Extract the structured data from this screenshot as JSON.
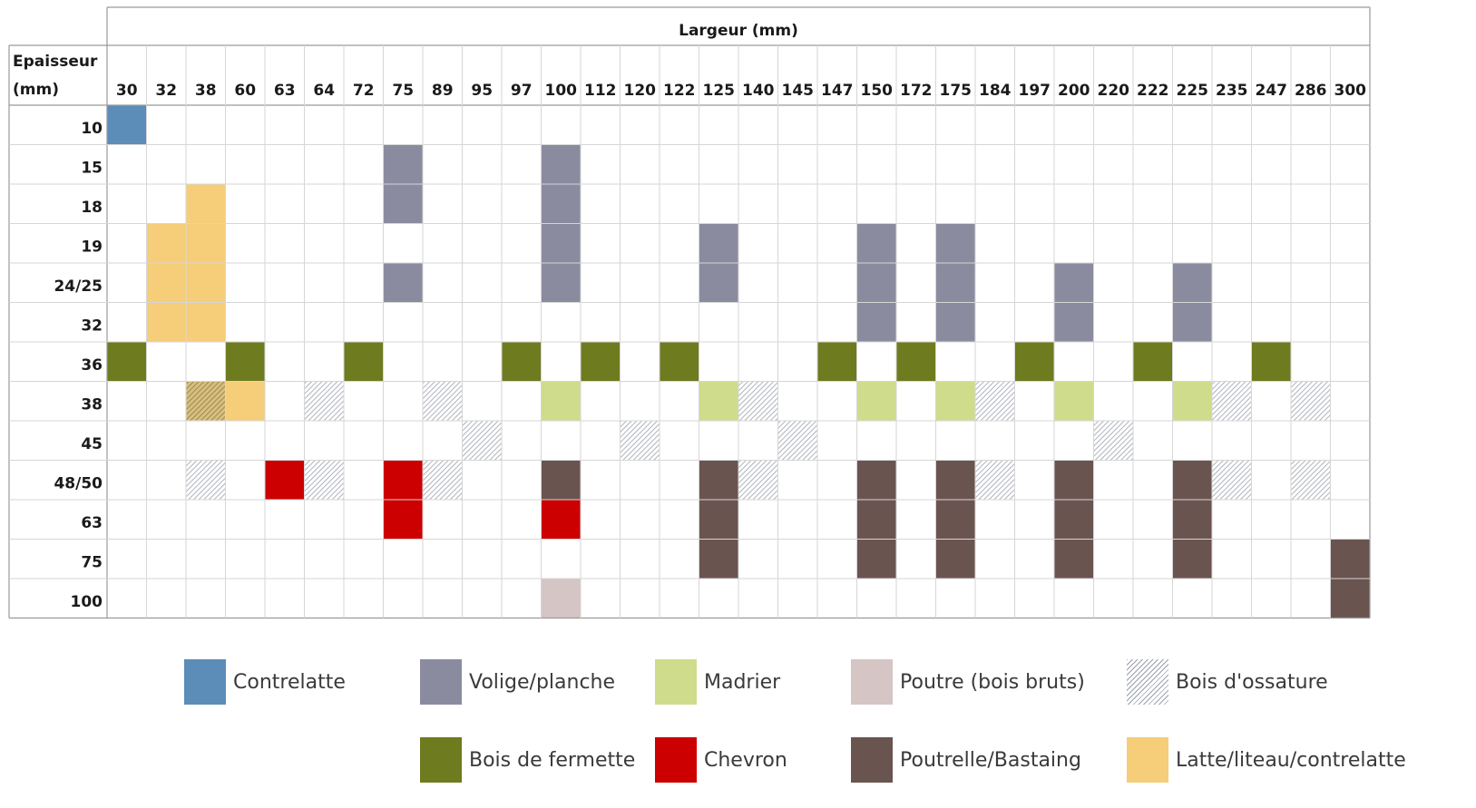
{
  "chart_data": {
    "type": "table",
    "column_header": "Largeur (mm)",
    "row_header_line1": "Epaisseur",
    "row_header_line2": "(mm)",
    "columns": [
      "30",
      "32",
      "38",
      "60",
      "63",
      "64",
      "72",
      "75",
      "89",
      "95",
      "97",
      "100",
      "112",
      "120",
      "122",
      "125",
      "140",
      "145",
      "147",
      "150",
      "172",
      "175",
      "184",
      "197",
      "200",
      "220",
      "222",
      "225",
      "235",
      "247",
      "286",
      "300"
    ],
    "rows": [
      "10",
      "15",
      "18",
      "19",
      "24/25",
      "32",
      "36",
      "38",
      "45",
      "48/50",
      "63",
      "75",
      "100"
    ],
    "categories": {
      "C": {
        "label": "Contrelatte",
        "color": "#5b8db8"
      },
      "V": {
        "label": "Volige/planche",
        "color": "#8b8ba0"
      },
      "M": {
        "label": "Madrier",
        "color": "#cfdc8c"
      },
      "P": {
        "label": "Poutre (bois bruts)",
        "color": "#d5c5c5"
      },
      "O": {
        "label": "Bois d'ossature",
        "color": "hatch"
      },
      "F": {
        "label": "Bois de fermette",
        "color": "#6e7b1f"
      },
      "CH": {
        "label": "Chevron",
        "color": "#cc0000"
      },
      "PB": {
        "label": "Poutrelle/Bastaing",
        "color": "#6a5450"
      },
      "L": {
        "label": "Latte/liteau/contrelatte",
        "color": "#f6cd79"
      }
    },
    "legend_order": [
      "C",
      "V",
      "M",
      "P",
      "O",
      "F",
      "CH",
      "PB",
      "L"
    ],
    "cells": [
      {
        "row": "10",
        "col": "30",
        "cat": "C"
      },
      {
        "row": "15",
        "col": "75",
        "cat": "V"
      },
      {
        "row": "15",
        "col": "100",
        "cat": "V"
      },
      {
        "row": "18",
        "col": "38",
        "cat": "L"
      },
      {
        "row": "18",
        "col": "75",
        "cat": "V"
      },
      {
        "row": "18",
        "col": "100",
        "cat": "V"
      },
      {
        "row": "19",
        "col": "32",
        "cat": "L"
      },
      {
        "row": "19",
        "col": "38",
        "cat": "L"
      },
      {
        "row": "19",
        "col": "100",
        "cat": "V"
      },
      {
        "row": "19",
        "col": "125",
        "cat": "V"
      },
      {
        "row": "19",
        "col": "150",
        "cat": "V"
      },
      {
        "row": "19",
        "col": "175",
        "cat": "V"
      },
      {
        "row": "24/25",
        "col": "32",
        "cat": "L"
      },
      {
        "row": "24/25",
        "col": "38",
        "cat": "L"
      },
      {
        "row": "24/25",
        "col": "75",
        "cat": "V"
      },
      {
        "row": "24/25",
        "col": "100",
        "cat": "V"
      },
      {
        "row": "24/25",
        "col": "125",
        "cat": "V"
      },
      {
        "row": "24/25",
        "col": "150",
        "cat": "V"
      },
      {
        "row": "24/25",
        "col": "175",
        "cat": "V"
      },
      {
        "row": "24/25",
        "col": "200",
        "cat": "V"
      },
      {
        "row": "24/25",
        "col": "225",
        "cat": "V"
      },
      {
        "row": "32",
        "col": "32",
        "cat": "L"
      },
      {
        "row": "32",
        "col": "38",
        "cat": "L"
      },
      {
        "row": "32",
        "col": "150",
        "cat": "V"
      },
      {
        "row": "32",
        "col": "175",
        "cat": "V"
      },
      {
        "row": "32",
        "col": "200",
        "cat": "V"
      },
      {
        "row": "32",
        "col": "225",
        "cat": "V"
      },
      {
        "row": "36",
        "col": "30",
        "cat": "F"
      },
      {
        "row": "36",
        "col": "60",
        "cat": "F"
      },
      {
        "row": "36",
        "col": "72",
        "cat": "F"
      },
      {
        "row": "36",
        "col": "97",
        "cat": "F"
      },
      {
        "row": "36",
        "col": "112",
        "cat": "F"
      },
      {
        "row": "36",
        "col": "122",
        "cat": "F"
      },
      {
        "row": "36",
        "col": "147",
        "cat": "F"
      },
      {
        "row": "36",
        "col": "172",
        "cat": "F"
      },
      {
        "row": "36",
        "col": "197",
        "cat": "F"
      },
      {
        "row": "36",
        "col": "222",
        "cat": "F"
      },
      {
        "row": "36",
        "col": "247",
        "cat": "F"
      },
      {
        "row": "38",
        "col": "38",
        "cat": "LO"
      },
      {
        "row": "38",
        "col": "60",
        "cat": "L"
      },
      {
        "row": "38",
        "col": "64",
        "cat": "O"
      },
      {
        "row": "38",
        "col": "89",
        "cat": "O"
      },
      {
        "row": "38",
        "col": "100",
        "cat": "M"
      },
      {
        "row": "38",
        "col": "125",
        "cat": "M"
      },
      {
        "row": "38",
        "col": "140",
        "cat": "O"
      },
      {
        "row": "38",
        "col": "150",
        "cat": "M"
      },
      {
        "row": "38",
        "col": "175",
        "cat": "M"
      },
      {
        "row": "38",
        "col": "184",
        "cat": "O"
      },
      {
        "row": "38",
        "col": "200",
        "cat": "M"
      },
      {
        "row": "38",
        "col": "225",
        "cat": "M"
      },
      {
        "row": "38",
        "col": "235",
        "cat": "O"
      },
      {
        "row": "38",
        "col": "286",
        "cat": "O"
      },
      {
        "row": "45",
        "col": "95",
        "cat": "O"
      },
      {
        "row": "45",
        "col": "120",
        "cat": "O"
      },
      {
        "row": "45",
        "col": "145",
        "cat": "O"
      },
      {
        "row": "45",
        "col": "220",
        "cat": "O"
      },
      {
        "row": "48/50",
        "col": "38",
        "cat": "O"
      },
      {
        "row": "48/50",
        "col": "63",
        "cat": "CH"
      },
      {
        "row": "48/50",
        "col": "64",
        "cat": "O"
      },
      {
        "row": "48/50",
        "col": "75",
        "cat": "CH"
      },
      {
        "row": "48/50",
        "col": "89",
        "cat": "O"
      },
      {
        "row": "48/50",
        "col": "100",
        "cat": "PB"
      },
      {
        "row": "48/50",
        "col": "125",
        "cat": "PB"
      },
      {
        "row": "48/50",
        "col": "140",
        "cat": "O"
      },
      {
        "row": "48/50",
        "col": "150",
        "cat": "PB"
      },
      {
        "row": "48/50",
        "col": "175",
        "cat": "PB"
      },
      {
        "row": "48/50",
        "col": "184",
        "cat": "O"
      },
      {
        "row": "48/50",
        "col": "200",
        "cat": "PB"
      },
      {
        "row": "48/50",
        "col": "225",
        "cat": "PB"
      },
      {
        "row": "48/50",
        "col": "235",
        "cat": "O"
      },
      {
        "row": "48/50",
        "col": "286",
        "cat": "O"
      },
      {
        "row": "63",
        "col": "75",
        "cat": "CH"
      },
      {
        "row": "63",
        "col": "100",
        "cat": "CH"
      },
      {
        "row": "63",
        "col": "125",
        "cat": "PB"
      },
      {
        "row": "63",
        "col": "150",
        "cat": "PB"
      },
      {
        "row": "63",
        "col": "175",
        "cat": "PB"
      },
      {
        "row": "63",
        "col": "200",
        "cat": "PB"
      },
      {
        "row": "63",
        "col": "225",
        "cat": "PB"
      },
      {
        "row": "75",
        "col": "125",
        "cat": "PB"
      },
      {
        "row": "75",
        "col": "150",
        "cat": "PB"
      },
      {
        "row": "75",
        "col": "175",
        "cat": "PB"
      },
      {
        "row": "75",
        "col": "200",
        "cat": "PB"
      },
      {
        "row": "75",
        "col": "225",
        "cat": "PB"
      },
      {
        "row": "75",
        "col": "300",
        "cat": "PB"
      },
      {
        "row": "100",
        "col": "100",
        "cat": "P"
      },
      {
        "row": "100",
        "col": "300",
        "cat": "PB"
      }
    ]
  }
}
